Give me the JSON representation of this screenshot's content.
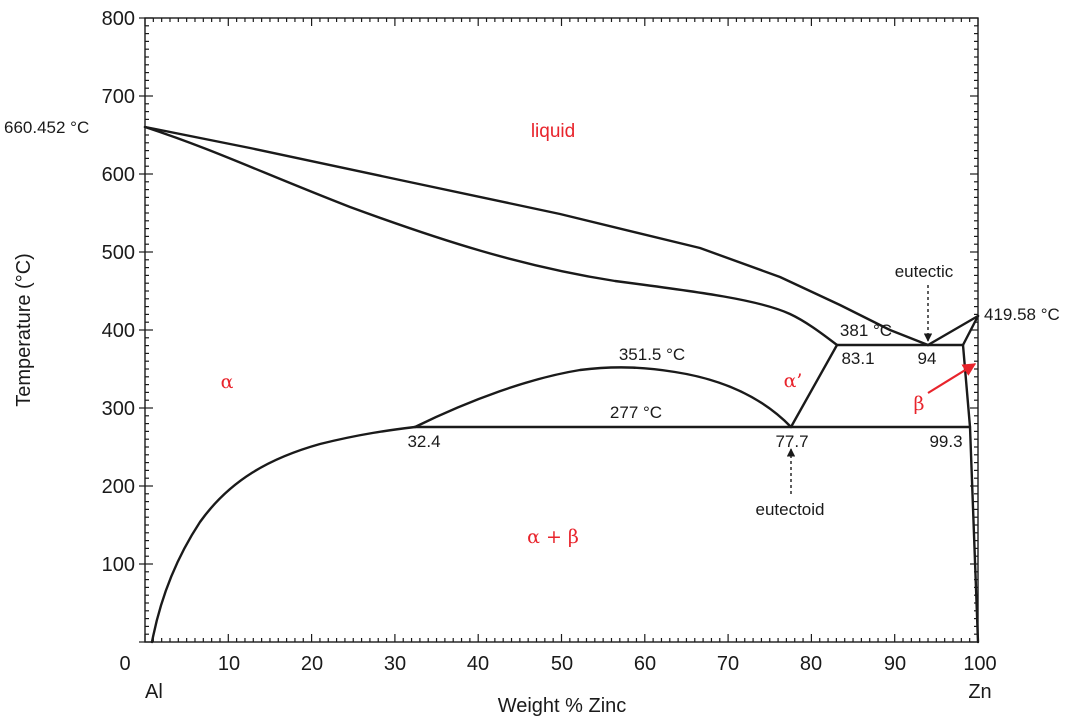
{
  "diagram": {
    "x_axis": {
      "title": "Weight % Zinc",
      "ticks": [
        "0",
        "10",
        "20",
        "30",
        "40",
        "50",
        "60",
        "70",
        "80",
        "90",
        "100"
      ],
      "left_end_label": "Al",
      "right_end_label": "Zn"
    },
    "y_axis": {
      "title": "Temperature (°C)",
      "ticks": [
        "100",
        "200",
        "300",
        "400",
        "500",
        "600",
        "700",
        "800"
      ]
    },
    "phases": {
      "liquid": "liquid",
      "alpha": "α",
      "alpha_prime": "α’",
      "beta": "β",
      "alpha_beta": "α + β"
    },
    "annotations": {
      "al_melting": "660.452 °C",
      "zn_melting": "419.58 °C",
      "eutectic_label": "eutectic",
      "eutectic_temp": "381 °C",
      "eutectic_left": "83.1",
      "eutectic_point": "94",
      "monotectoid_peak": "351.5 °C",
      "eutectoid_temp": "277 °C",
      "eutectoid_left": "32.4",
      "eutectoid_point": "77.7",
      "eutectoid_right": "99.3",
      "eutectoid_label": "eutectoid"
    },
    "colors": {
      "phase_label": "#e8242c",
      "line": "#1a1a1a"
    }
  }
}
